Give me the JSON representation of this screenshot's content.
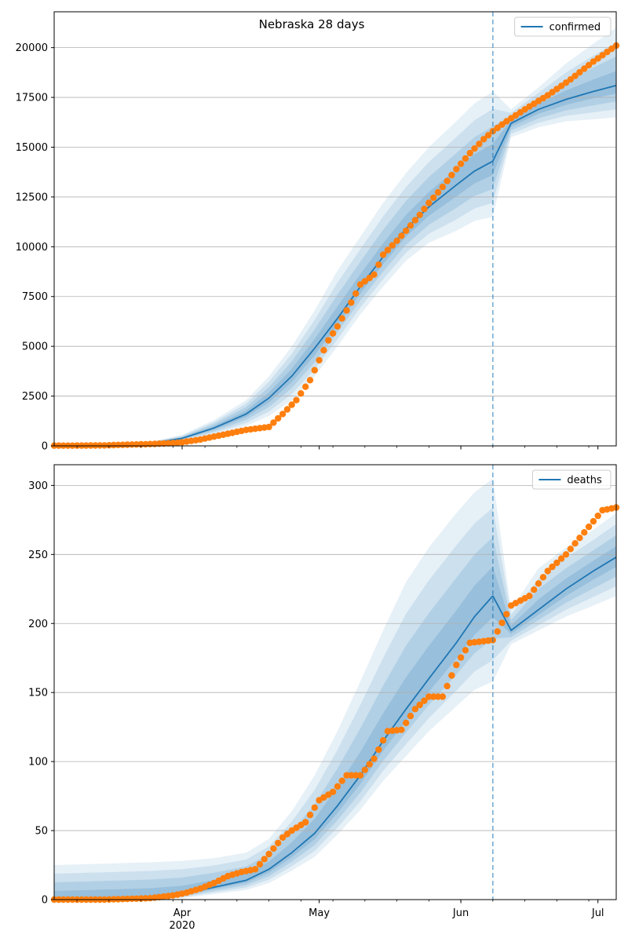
{
  "colors": {
    "model": "#1f77b4",
    "observed": "#ff7f0e",
    "band": "#1f77b4",
    "grid": "#b0b0b0",
    "frame": "#000000"
  },
  "x_axis": {
    "start": "2020-03-04",
    "end": "2020-07-05",
    "ticks": [
      {
        "date": "2020-04-01",
        "label": "Apr",
        "sub": "2020"
      },
      {
        "date": "2020-05-01",
        "label": "May",
        "sub": ""
      },
      {
        "date": "2020-06-01",
        "label": "Jun",
        "sub": ""
      },
      {
        "date": "2020-07-01",
        "label": "Jul",
        "sub": ""
      }
    ]
  },
  "forecast_start": "2020-06-08",
  "chart_data": [
    {
      "type": "line",
      "title": "Nebraska 28 days",
      "legend": {
        "label": "confirmed",
        "position": "top-right"
      },
      "ylim": [
        0,
        21800
      ],
      "yticks": [
        0,
        2500,
        5000,
        7500,
        10000,
        12500,
        15000,
        17500,
        20000
      ],
      "grid": "y",
      "model_series": {
        "name": "confirmed",
        "x": [
          "2020-03-04",
          "2020-03-15",
          "2020-03-25",
          "2020-04-01",
          "2020-04-08",
          "2020-04-15",
          "2020-04-20",
          "2020-04-25",
          "2020-04-30",
          "2020-05-05",
          "2020-05-10",
          "2020-05-15",
          "2020-05-20",
          "2020-05-25",
          "2020-05-31",
          "2020-06-04",
          "2020-06-08",
          "2020-06-12",
          "2020-06-18",
          "2020-06-24",
          "2020-06-30",
          "2020-07-05"
        ],
        "y": [
          0,
          20,
          120,
          380,
          900,
          1600,
          2400,
          3500,
          4900,
          6400,
          8000,
          9500,
          10900,
          12000,
          13100,
          13800,
          14300,
          16200,
          16900,
          17400,
          17800,
          18100
        ],
        "lower": [
          0,
          10,
          80,
          250,
          560,
          1000,
          1500,
          2300,
          3500,
          5000,
          6600,
          8000,
          9300,
          10200,
          10800,
          11300,
          11500,
          15500,
          16000,
          16300,
          16400,
          16500
        ],
        "upper": [
          0,
          50,
          200,
          550,
          1300,
          2300,
          3500,
          5000,
          6800,
          8800,
          10500,
          12200,
          13700,
          15000,
          16300,
          17200,
          17800,
          16900,
          18000,
          19200,
          20200,
          21000
        ]
      },
      "observed": {
        "x": [
          "2020-03-04",
          "2020-03-10",
          "2020-03-15",
          "2020-03-20",
          "2020-03-25",
          "2020-03-29",
          "2020-04-01",
          "2020-04-05",
          "2020-04-10",
          "2020-04-15",
          "2020-04-20",
          "2020-04-23",
          "2020-04-26",
          "2020-04-29",
          "2020-05-01",
          "2020-05-03",
          "2020-05-05",
          "2020-05-08",
          "2020-05-10",
          "2020-05-13",
          "2020-05-15",
          "2020-05-18",
          "2020-05-20",
          "2020-05-23",
          "2020-05-25",
          "2020-05-28",
          "2020-05-31",
          "2020-06-03",
          "2020-06-06",
          "2020-06-08",
          "2020-06-11",
          "2020-06-15",
          "2020-06-20",
          "2020-06-25",
          "2020-06-30",
          "2020-07-05"
        ],
        "y": [
          10,
          15,
          25,
          60,
          90,
          130,
          180,
          320,
          560,
          800,
          950,
          1600,
          2300,
          3300,
          4300,
          5300,
          6000,
          7200,
          8100,
          8600,
          9600,
          10300,
          10800,
          11600,
          12200,
          13000,
          13900,
          14700,
          15400,
          15800,
          16300,
          16900,
          17600,
          18400,
          19300,
          20100
        ]
      }
    },
    {
      "type": "line",
      "title": "",
      "legend": {
        "label": "deaths",
        "position": "top-right"
      },
      "ylim": [
        0,
        315
      ],
      "yticks": [
        0,
        50,
        100,
        150,
        200,
        250,
        300
      ],
      "grid": "y",
      "model_series": {
        "name": "deaths",
        "x": [
          "2020-03-04",
          "2020-03-15",
          "2020-03-25",
          "2020-04-01",
          "2020-04-08",
          "2020-04-15",
          "2020-04-20",
          "2020-04-25",
          "2020-04-30",
          "2020-05-05",
          "2020-05-10",
          "2020-05-15",
          "2020-05-20",
          "2020-05-25",
          "2020-05-31",
          "2020-06-04",
          "2020-06-08",
          "2020-06-12",
          "2020-06-18",
          "2020-06-24",
          "2020-06-30",
          "2020-07-05"
        ],
        "y": [
          0,
          1,
          2,
          4,
          9,
          14,
          22,
          34,
          48,
          68,
          90,
          115,
          138,
          160,
          186,
          205,
          220,
          195,
          210,
          225,
          238,
          248
        ],
        "lower": [
          0,
          0,
          0,
          1,
          4,
          7,
          12,
          21,
          31,
          47,
          65,
          86,
          104,
          122,
          140,
          152,
          158,
          185,
          195,
          205,
          213,
          220
        ],
        "upper": [
          25,
          26,
          27,
          28,
          30,
          34,
          44,
          64,
          90,
          122,
          158,
          195,
          230,
          255,
          280,
          295,
          305,
          210,
          240,
          255,
          268,
          280
        ]
      },
      "observed": {
        "x": [
          "2020-03-04",
          "2020-03-15",
          "2020-03-25",
          "2020-03-30",
          "2020-04-02",
          "2020-04-05",
          "2020-04-08",
          "2020-04-11",
          "2020-04-14",
          "2020-04-17",
          "2020-04-20",
          "2020-04-23",
          "2020-04-25",
          "2020-04-28",
          "2020-05-01",
          "2020-05-04",
          "2020-05-07",
          "2020-05-10",
          "2020-05-13",
          "2020-05-16",
          "2020-05-19",
          "2020-05-22",
          "2020-05-25",
          "2020-05-28",
          "2020-05-31",
          "2020-06-03",
          "2020-06-08",
          "2020-06-12",
          "2020-06-16",
          "2020-06-20",
          "2020-06-24",
          "2020-06-28",
          "2020-07-02",
          "2020-07-05"
        ],
        "y": [
          0,
          0,
          1,
          3,
          5,
          8,
          12,
          17,
          20,
          22,
          33,
          45,
          50,
          56,
          72,
          78,
          90,
          90,
          102,
          122,
          123,
          138,
          147,
          147,
          170,
          186,
          188,
          213,
          220,
          238,
          250,
          266,
          282,
          284
        ]
      }
    }
  ]
}
